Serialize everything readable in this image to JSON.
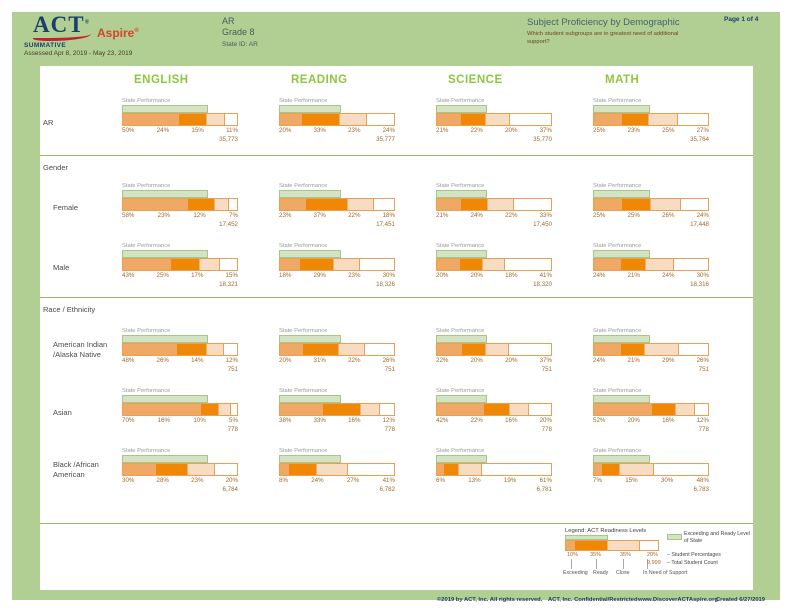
{
  "header": {
    "logo": {
      "act": "ACT",
      "act_reg": "®",
      "aspire": "Aspire",
      "aspire_reg": "®"
    },
    "program": "SUMMATIVE",
    "assessed": "Assessed Apr 8, 2019 - May 23, 2019",
    "org": "AR",
    "grade": "Grade 8",
    "state_id": "State ID: AR",
    "title": "Subject Proficiency by Demographic",
    "question": "Which student subgroups are in greatest need of additional support?",
    "page": "Page 1 of 4"
  },
  "state_performance_label": "State Performance",
  "sections": [
    {
      "title": "Gender"
    },
    {
      "title": "Race / Ethnicity"
    }
  ],
  "chart_data": {
    "type": "bar",
    "stacked": true,
    "orientation": "horizontal",
    "unit": "percent of students",
    "levels": [
      "Exceeding",
      "Ready",
      "Close",
      "In Need of Support"
    ],
    "subjects": [
      "ENGLISH",
      "READING",
      "SCIENCE",
      "MATH"
    ],
    "state_exceeding_ready_pct": [
      74,
      53,
      43,
      48
    ],
    "rows": [
      {
        "group": "AR",
        "cells": [
          {
            "pcts": [
              50,
              24,
              15,
              11
            ],
            "total": "35,773"
          },
          {
            "pcts": [
              20,
              33,
              23,
              24
            ],
            "total": "35,777"
          },
          {
            "pcts": [
              21,
              22,
              20,
              37
            ],
            "total": "35,770"
          },
          {
            "pcts": [
              25,
              23,
              25,
              27
            ],
            "total": "35,764"
          }
        ]
      },
      {
        "group": "Female",
        "cells": [
          {
            "pcts": [
              58,
              23,
              12,
              7
            ],
            "total": "17,452"
          },
          {
            "pcts": [
              23,
              37,
              22,
              18
            ],
            "total": "17,451"
          },
          {
            "pcts": [
              21,
              24,
              22,
              33
            ],
            "total": "17,450"
          },
          {
            "pcts": [
              25,
              25,
              26,
              24
            ],
            "total": "17,448"
          }
        ]
      },
      {
        "group": "Male",
        "cells": [
          {
            "pcts": [
              43,
              25,
              17,
              15
            ],
            "total": "18,321"
          },
          {
            "pcts": [
              18,
              29,
              23,
              30
            ],
            "total": "18,326"
          },
          {
            "pcts": [
              20,
              20,
              18,
              41
            ],
            "total": "18,320"
          },
          {
            "pcts": [
              24,
              21,
              24,
              30
            ],
            "total": "18,316"
          }
        ]
      },
      {
        "group": "American Indian\n/Alaska Native",
        "cells": [
          {
            "pcts": [
              48,
              26,
              14,
              12
            ],
            "total": "751"
          },
          {
            "pcts": [
              20,
              31,
              22,
              26
            ],
            "total": "751"
          },
          {
            "pcts": [
              22,
              20,
              20,
              37
            ],
            "total": "751"
          },
          {
            "pcts": [
              24,
              21,
              29,
              26
            ],
            "total": "751"
          }
        ]
      },
      {
        "group": "Asian",
        "cells": [
          {
            "pcts": [
              70,
              16,
              10,
              5
            ],
            "total": "778"
          },
          {
            "pcts": [
              38,
              33,
              16,
              12
            ],
            "total": "778"
          },
          {
            "pcts": [
              42,
              22,
              16,
              20
            ],
            "total": "778"
          },
          {
            "pcts": [
              52,
              20,
              16,
              12
            ],
            "total": "778"
          }
        ]
      },
      {
        "group": "Black /African\nAmerican",
        "cells": [
          {
            "pcts": [
              30,
              28,
              23,
              20
            ],
            "total": "6,784"
          },
          {
            "pcts": [
              8,
              24,
              27,
              41
            ],
            "total": "6,782"
          },
          {
            "pcts": [
              6,
              13,
              19,
              61
            ],
            "total": "6,781"
          },
          {
            "pcts": [
              7,
              15,
              30,
              48
            ],
            "total": "6,783"
          }
        ]
      }
    ]
  },
  "legend": {
    "title": "Legend: ACT Readiness Levels",
    "sample_pcts": [
      10,
      35,
      35,
      20
    ],
    "sample_labels": [
      "10%",
      "35%",
      "35%",
      "20%"
    ],
    "level_names": [
      "Exceeding",
      "Ready",
      "Close",
      "In Need of Support"
    ],
    "state_line_label": "Exceeding and Ready Level of State",
    "student_pct_label": "– Student Percentages",
    "total_count_example": "9,999",
    "total_count_label": "– Total Student Count"
  },
  "footer": {
    "copyright": "©2019 by ACT, Inc. All rights reserved.",
    "confidential": "ACT, Inc. Confidential/Restricted",
    "website": "www.DiscoverACTAspire.org",
    "created": "Created 6/27/2019"
  },
  "colors": {
    "background_green": "#b1cf92",
    "subject_header_green": "#8dc63f",
    "exceeding": "#f0a964",
    "ready": "#f08705",
    "close": "#f8dcc1",
    "in_need_of_support": "#ffffff",
    "state_bar_green": "#d4e3c3",
    "bar_border": "#e8a055",
    "percent_text": "#9b6a2f",
    "navy": "#1c3e6e",
    "aspire_red": "#d8412f"
  }
}
